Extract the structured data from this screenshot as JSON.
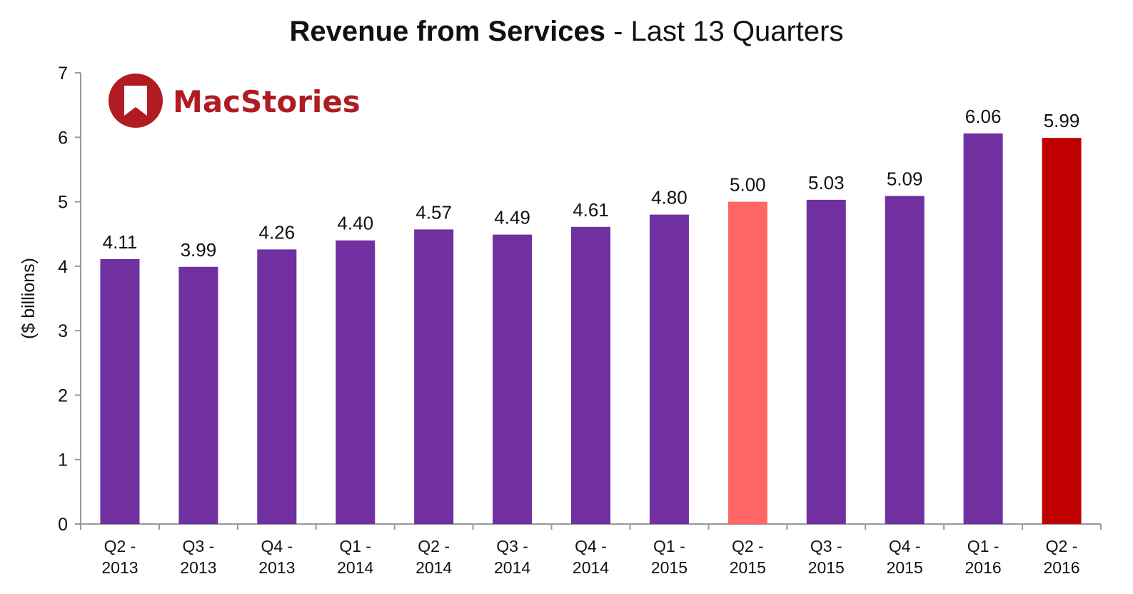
{
  "title": {
    "bold": "Revenue from Services",
    "rest": " - Last 13 Quarters"
  },
  "logo": {
    "text": "MacStories",
    "icon": "bookmark-icon",
    "color": "#b01c22"
  },
  "colors": {
    "default": "#7030a0",
    "highlight_prev": "#ff6666",
    "highlight_current": "#c00000"
  },
  "chart_data": {
    "type": "bar",
    "ylabel": "($ billions)",
    "xlabel": "",
    "ylim": [
      0,
      7
    ],
    "yticks": [
      0,
      1,
      2,
      3,
      4,
      5,
      6,
      7
    ],
    "grid": false,
    "categories": [
      [
        "Q2 -",
        "2013"
      ],
      [
        "Q3 -",
        "2013"
      ],
      [
        "Q4 -",
        "2013"
      ],
      [
        "Q1 -",
        "2014"
      ],
      [
        "Q2 -",
        "2014"
      ],
      [
        "Q3 -",
        "2014"
      ],
      [
        "Q4 -",
        "2014"
      ],
      [
        "Q1 -",
        "2015"
      ],
      [
        "Q2 -",
        "2015"
      ],
      [
        "Q3 -",
        "2015"
      ],
      [
        "Q4 -",
        "2015"
      ],
      [
        "Q1 -",
        "2016"
      ],
      [
        "Q2 -",
        "2016"
      ]
    ],
    "values": [
      4.11,
      3.99,
      4.26,
      4.4,
      4.57,
      4.49,
      4.61,
      4.8,
      5.0,
      5.03,
      5.09,
      6.06,
      5.99
    ],
    "value_labels": [
      "4.11",
      "3.99",
      "4.26",
      "4.40",
      "4.57",
      "4.49",
      "4.61",
      "4.80",
      "5.00",
      "5.03",
      "5.09",
      "6.06",
      "5.99"
    ],
    "bar_colors": [
      "#7030a0",
      "#7030a0",
      "#7030a0",
      "#7030a0",
      "#7030a0",
      "#7030a0",
      "#7030a0",
      "#7030a0",
      "#ff6666",
      "#7030a0",
      "#7030a0",
      "#7030a0",
      "#c00000"
    ]
  }
}
